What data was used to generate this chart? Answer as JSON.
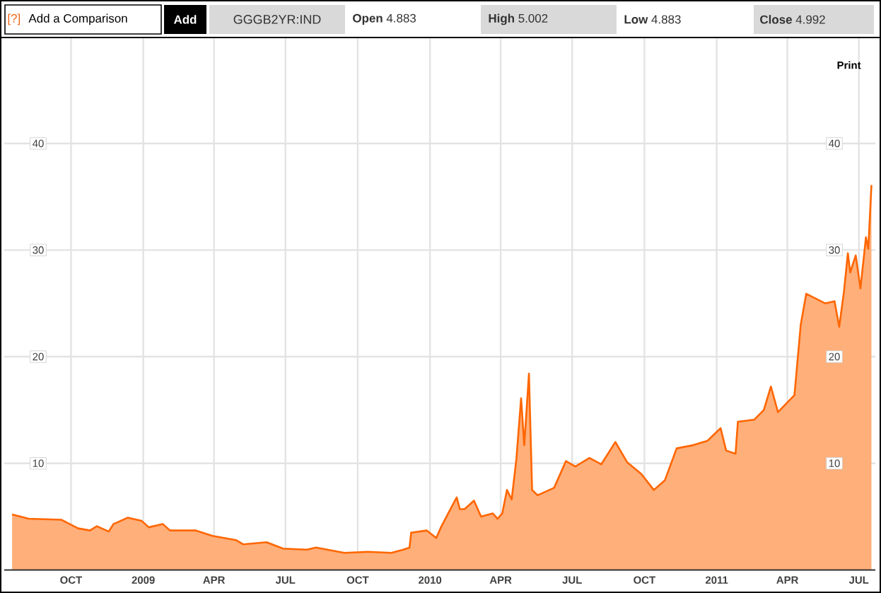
{
  "chart_data": {
    "type": "area",
    "x": [
      "2008-07-18",
      "2008-08-08",
      "2008-09-19",
      "2008-10-10",
      "2008-10-25",
      "2008-11-03",
      "2008-11-18",
      "2008-11-24",
      "2008-12-12",
      "2008-12-30",
      "2009-01-08",
      "2009-01-26",
      "2009-02-04",
      "2009-03-09",
      "2009-03-30",
      "2009-04-29",
      "2009-05-08",
      "2009-06-07",
      "2009-06-28",
      "2009-07-28",
      "2009-08-09",
      "2009-09-14",
      "2009-10-14",
      "2009-11-13",
      "2009-11-28",
      "2009-12-06",
      "2009-12-08",
      "2009-12-28",
      "2010-01-09",
      "2010-01-15",
      "2010-01-22",
      "2010-02-04",
      "2010-02-08",
      "2010-02-14",
      "2010-02-26",
      "2010-03-07",
      "2010-03-22",
      "2010-03-28",
      "2010-04-03",
      "2010-04-09",
      "2010-04-15",
      "2010-04-21",
      "2010-04-27",
      "2010-05-01",
      "2010-05-07",
      "2010-05-11",
      "2010-05-18",
      "2010-06-08",
      "2010-06-23",
      "2010-07-05",
      "2010-07-23",
      "2010-08-07",
      "2010-08-25",
      "2010-09-09",
      "2010-09-27",
      "2010-10-13",
      "2010-10-27",
      "2010-11-11",
      "2010-12-02",
      "2010-12-20",
      "2011-01-06",
      "2011-01-13",
      "2011-01-25",
      "2011-01-28",
      "2011-02-18",
      "2011-03-02",
      "2011-03-11",
      "2011-03-20",
      "2011-04-10",
      "2011-04-18",
      "2011-04-25",
      "2011-05-19",
      "2011-05-31",
      "2011-06-06",
      "2011-06-12",
      "2011-06-17",
      "2011-06-20",
      "2011-06-27",
      "2011-07-03",
      "2011-07-10",
      "2011-07-13",
      "2011-07-17"
    ],
    "series": [
      {
        "color": "#ff6600",
        "values": [
          5.2,
          4.8,
          4.7,
          3.9,
          3.7,
          4.1,
          3.6,
          4.3,
          4.9,
          4.6,
          4.0,
          4.3,
          3.7,
          3.7,
          3.2,
          2.8,
          2.4,
          2.6,
          2.0,
          1.9,
          2.1,
          1.6,
          1.7,
          1.6,
          1.9,
          2.1,
          3.5,
          3.7,
          3.0,
          4.0,
          5.0,
          6.8,
          5.7,
          5.7,
          6.5,
          5.0,
          5.3,
          4.8,
          5.3,
          7.5,
          6.6,
          10.4,
          16.1,
          11.7,
          18.4,
          7.5,
          7.0,
          7.7,
          10.2,
          9.7,
          10.5,
          9.9,
          12.0,
          10.1,
          9.0,
          7.5,
          8.4,
          11.4,
          11.7,
          12.1,
          13.3,
          11.2,
          10.9,
          13.9,
          14.1,
          15.0,
          17.2,
          14.8,
          16.4,
          23.0,
          25.9,
          25.0,
          25.2,
          22.8,
          26.1,
          29.7,
          27.9,
          29.5,
          26.4,
          31.2,
          30.1,
          36.1
        ]
      }
    ],
    "xlim": [
      "2008-07-08",
      "2011-07-22"
    ],
    "xticks": [
      {
        "value": "2008-10-01",
        "label": "OCT"
      },
      {
        "value": "2009-01-01",
        "label": "2009"
      },
      {
        "value": "2009-04-01",
        "label": "APR"
      },
      {
        "value": "2009-07-01",
        "label": "JUL"
      },
      {
        "value": "2009-10-01",
        "label": "OCT"
      },
      {
        "value": "2010-01-01",
        "label": "2010"
      },
      {
        "value": "2010-04-01",
        "label": "APR"
      },
      {
        "value": "2010-07-01",
        "label": "JUL"
      },
      {
        "value": "2010-10-01",
        "label": "OCT"
      },
      {
        "value": "2011-01-01",
        "label": "2011"
      },
      {
        "value": "2011-04-01",
        "label": "APR"
      },
      {
        "value": "2011-07-01",
        "label": "JUL"
      }
    ],
    "ylim": [
      0,
      50
    ],
    "yticks": [
      10,
      20,
      30,
      40
    ],
    "y2lim": [
      0,
      50
    ],
    "y2ticks": [
      10,
      20,
      30,
      40
    ],
    "grid": true,
    "annotations": [
      "[?]",
      "Add a Comparison",
      "Add",
      "GGGB2YR:IND",
      "**Open** 4.883",
      "**High** 5.002",
      "**Low** 4.883",
      "**Close** 4.992",
      "Print"
    ]
  }
}
